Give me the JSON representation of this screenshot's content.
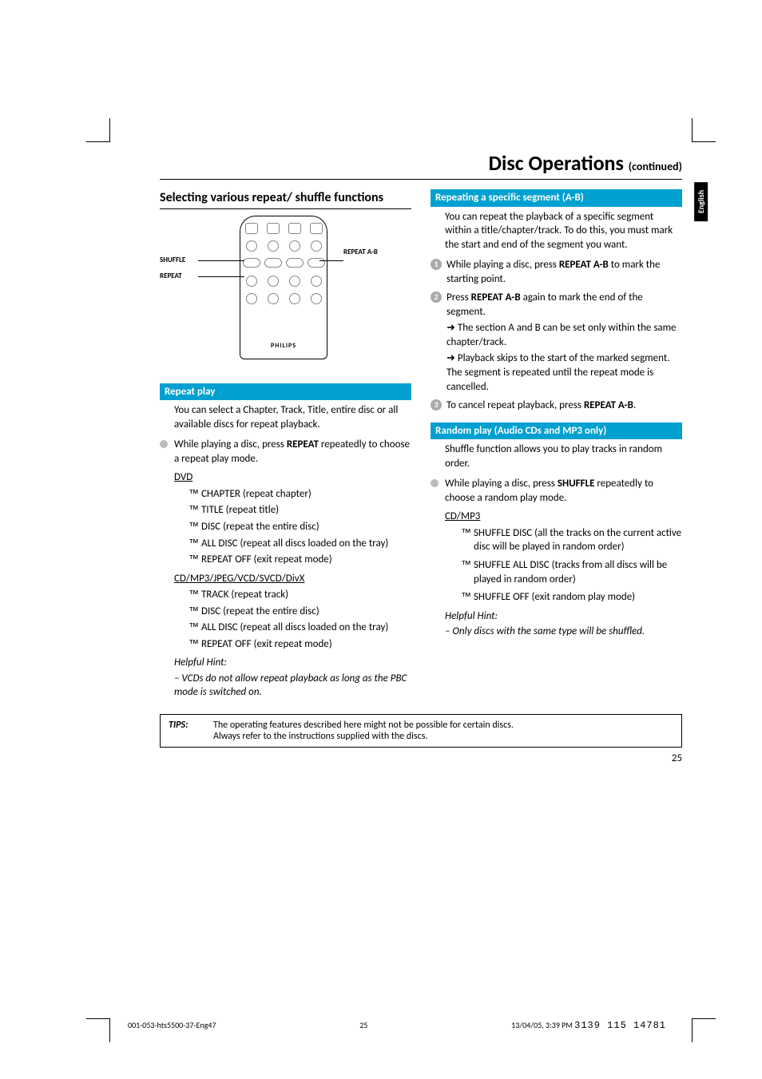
{
  "page": {
    "title": "Disc Operations",
    "continued": "(continued)",
    "sideTab": "English",
    "pageNum": "25"
  },
  "left": {
    "sectionTitle": "Selecting various repeat/ shuffle functions",
    "remote": {
      "labelShuffle": "SHUFFLE",
      "labelRepeat": "REPEAT",
      "labelRepeatAB": "REPEAT A-B",
      "logo": "PHILIPS"
    },
    "repeatBar": "Repeat play",
    "repeatIntro": "You can select a Chapter, Track, Title, entire disc or all available discs for repeat playback.",
    "repeatBullet": "While playing a disc, press <b>REPEAT</b> repeatedly to choose a repeat play mode.",
    "dvdHead": "DVD",
    "dvdItems": [
      "CHAPTER (repeat chapter)",
      "TITLE (repeat title)",
      "DISC (repeat the entire disc)",
      "ALL DISC (repeat all discs loaded on the tray)",
      "REPEAT OFF (exit repeat mode)"
    ],
    "cdHead": "CD/MP3/JPEG/VCD/SVCD/DivX",
    "cdItems": [
      "TRACK (repeat track)",
      "DISC (repeat the entire disc)",
      "ALL DISC (repeat all discs loaded on the tray)",
      "REPEAT OFF (exit repeat mode)"
    ],
    "hintHead": "Helpful Hint:",
    "hintBody": "– VCDs do not allow repeat playback as long as the PBC mode is switched on."
  },
  "right": {
    "abBar": "Repeating a specific segment (A-B)",
    "abIntro": "You can repeat the playback of a specific segment within a title/chapter/track.  To do this, you must mark the start and end of the segment you want.",
    "abStep1": "While playing a disc, press <b>REPEAT A-B</b> to mark the starting point.",
    "abStep2": "Press <b>REPEAT A-B</b> again to mark the end of the segment.",
    "abStep2a": "The section A and B can be set only within the same chapter/track.",
    "abStep2b": "Playback skips to the start of the marked segment.  The segment is repeated until the repeat mode is cancelled.",
    "abStep3": "To cancel repeat playback, press <b>REPEAT A-B</b>.",
    "randBar": "Random play (Audio CDs and MP3 only)",
    "randIntro": "Shuffle function allows you to play tracks in random order.",
    "randBullet": "While playing a disc, press <b>SHUFFLE</b> repeatedly to choose a random play mode.",
    "randHead": "CD/MP3",
    "randItems": [
      "SHUFFLE DISC (all the tracks on the current active disc will be played in random order)",
      "SHUFFLE ALL DISC (tracks from all discs will be played in random order)",
      "SHUFFLE OFF (exit random play mode)"
    ],
    "hintHead": "Helpful Hint:",
    "hintBody": "– Only discs with the same type will be shuffled."
  },
  "tips": {
    "label": "TIPS:",
    "body1": "The operating features described here might not be possible for certain discs.",
    "body2": "Always refer to the instructions supplied with the discs."
  },
  "footer": {
    "left": "001-053-hts5500-37-Eng47",
    "mid": "25",
    "right": "13/04/05, 3:39 PM",
    "stamp": "3139 115 14781"
  }
}
